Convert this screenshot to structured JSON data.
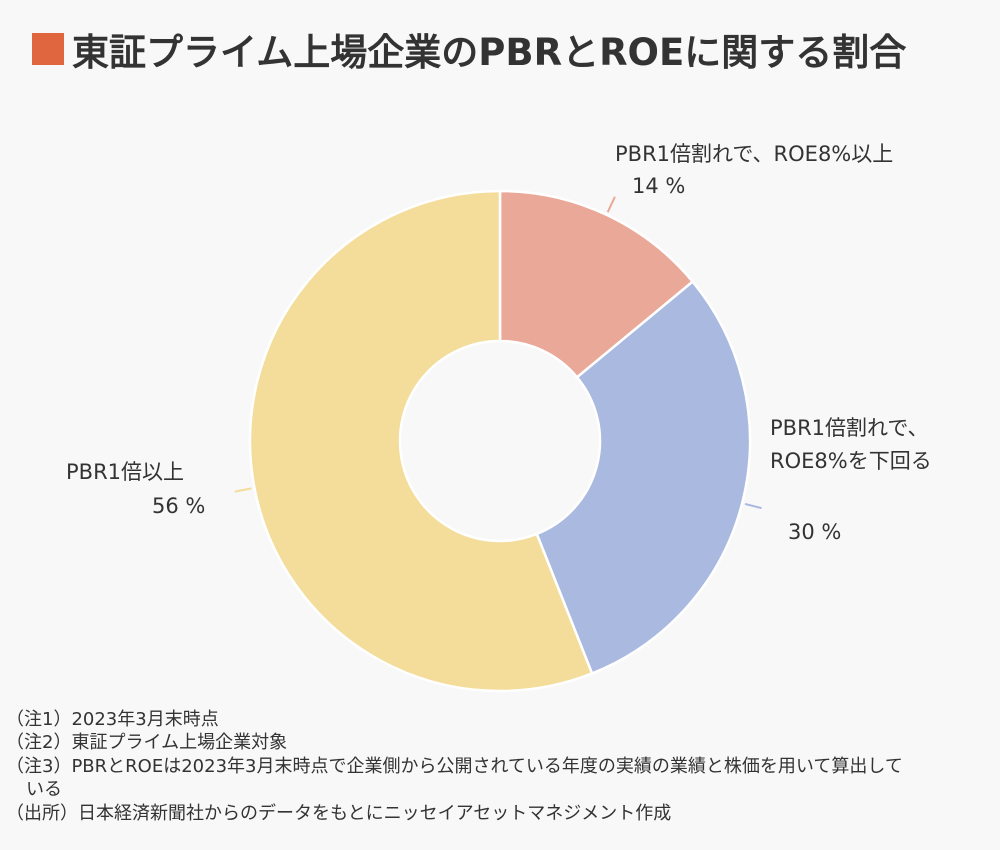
{
  "chart_data": {
    "type": "donut",
    "title": "東証プライム上場企業のPBRとROEに関する割合",
    "categories": [
      "PBR1倍割れで、ROE8%以上",
      "PBR1倍割れで、\nROE8%を下回る",
      "PBR1倍以上"
    ],
    "values": [
      14,
      30,
      56
    ],
    "value_labels": [
      "14 %",
      "30 %",
      "56 %"
    ],
    "colors": [
      "#eaa898",
      "#a9b9df",
      "#f4dd9b"
    ],
    "notes": [
      "（注1）2023年3月末時点",
      "（注2）東証プライム上場企業対象",
      "（注3）PBRとROEは2023年3月末時点で企業側から公開されている年度の実績の業績と株価を用いて算出している",
      "（出所）日本経済新聞社からのデータをもとにニッセイアセットマネジメント作成"
    ]
  }
}
